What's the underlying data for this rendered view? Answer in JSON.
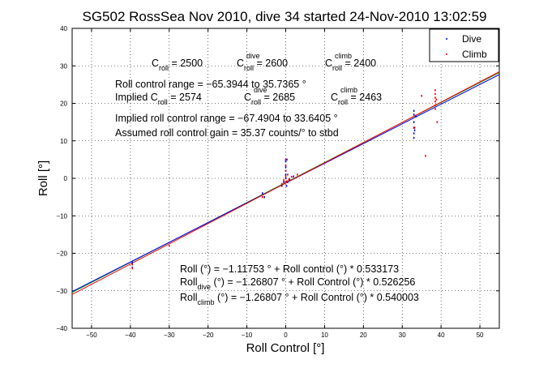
{
  "chart_data": {
    "type": "scatter",
    "title": "SG502 RossSea Nov 2010, dive 34 started 24-Nov-2010 13:02:59",
    "xlabel": "Roll Control [°]",
    "ylabel": "Roll [°]",
    "xlim": [
      -55,
      55
    ],
    "ylim": [
      -40,
      40
    ],
    "xticks": [
      "−50",
      "−40",
      "−30",
      "−20",
      "−10",
      "0",
      "10",
      "20",
      "30",
      "40",
      "50"
    ],
    "yticks": [
      "40",
      "30",
      "20",
      "10",
      "0",
      "−10",
      "−20",
      "−30",
      "−40"
    ],
    "grid": true,
    "legend_position": "top-right",
    "legend": [
      {
        "label": "Dive",
        "color": "#0000ff"
      },
      {
        "label": "Climb",
        "color": "#ff0000"
      }
    ],
    "series": [
      {
        "name": "Dive",
        "color": "#0000ff",
        "x": [
          -39.5,
          -39.5,
          -6,
          -5.5,
          -1,
          -0.5,
          0,
          0,
          0,
          0,
          0,
          0.2,
          0.3,
          0.5,
          1,
          2,
          33,
          33,
          33,
          33,
          33,
          33,
          33.2,
          33.5
        ],
        "y": [
          -23.8,
          -22.5,
          -4,
          -5,
          -2,
          -1,
          0,
          1,
          2,
          3,
          4.5,
          -2,
          5,
          -1,
          -0.3,
          0.5,
          10.8,
          12,
          13.5,
          15,
          17,
          18,
          12.8,
          16.5
        ]
      },
      {
        "name": "Climb",
        "color": "#ff0000",
        "x": [
          -39.5,
          -39.5,
          -30,
          -6,
          -1,
          -0.5,
          0,
          0,
          0,
          0,
          0,
          0.3,
          0.5,
          0.8,
          1.5,
          3,
          33.2,
          35,
          36,
          38.5,
          38.5,
          38.5,
          38.5,
          38.5,
          38.5,
          38.8,
          39
        ],
        "y": [
          -24,
          -23,
          -18,
          -5,
          -1.5,
          -0.5,
          -1,
          0.5,
          2,
          3.5,
          5,
          -0.8,
          1,
          -0.3,
          0.4,
          1,
          13.5,
          22,
          6,
          18.5,
          19.5,
          20.5,
          21.5,
          22.5,
          23.5,
          21,
          15
        ]
      }
    ],
    "fit_lines": [
      {
        "name": "all",
        "intercept": -1.11753,
        "slope": 0.533173,
        "color": "#00aa00"
      },
      {
        "name": "dive",
        "intercept": -1.26807,
        "slope": 0.526256,
        "color": "#0000ff"
      },
      {
        "name": "climb",
        "intercept": -1.26807,
        "slope": 0.540003,
        "color": "#ff0000"
      }
    ]
  },
  "annotations": {
    "c_roll": "C",
    "c_roll_sub": "roll",
    "c_roll_val": " = 2500",
    "c_dive": "C",
    "c_dive_sup": "dive",
    "c_dive_sub": "roll",
    "c_dive_val": " = 2600",
    "c_climb": "C",
    "c_climb_sup": "climb",
    "c_climb_sub": "roll",
    "c_climb_val": " = 2400",
    "range": "Roll control range = −65.3944 to 35.7365 °",
    "implied_prefix": "Implied C",
    "implied_sub": "roll",
    "implied_val": " = 2574",
    "implied_dive": "C",
    "implied_dive_sup": "dive",
    "implied_dive_sub": "roll",
    "implied_dive_val": " = 2685",
    "implied_climb": "C",
    "implied_climb_sup": "climb",
    "implied_climb_sub": "roll",
    "implied_climb_val": " = 2463",
    "implied_range": "Implied roll control range = −67.4904 to 33.6405 °",
    "gain": "Assumed roll control gain = 35.37 counts/° to stbd",
    "fit_all": "Roll (°) = −1.11753 ° + Roll control (°) * 0.533173",
    "fit_dive_pre": "Roll",
    "fit_dive_sub": "dive",
    "fit_dive_post": " (°) = −1.26807 ° + Roll Control (°) * 0.526256",
    "fit_climb_pre": "Roll",
    "fit_climb_sub": "climb",
    "fit_climb_post": " (°) = −1.26807 ° + Roll Control (°) * 0.540003"
  }
}
